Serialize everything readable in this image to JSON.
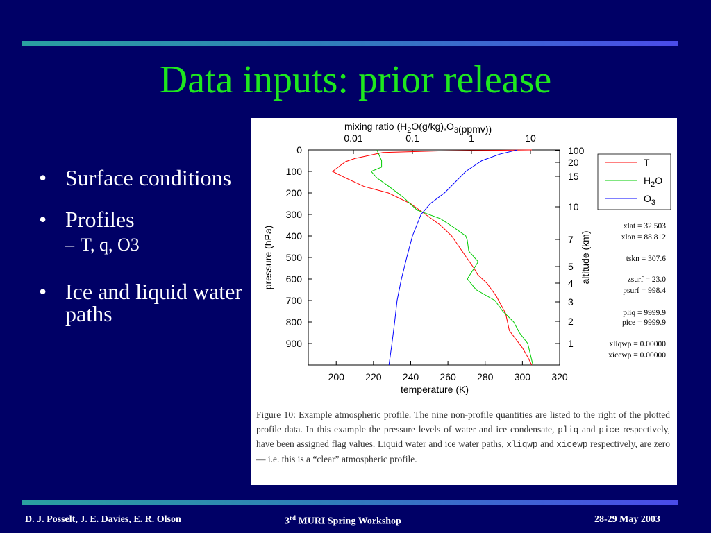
{
  "slide": {
    "title": "Data inputs: prior release",
    "bullets": [
      {
        "text": "Surface conditions"
      },
      {
        "text": "Profiles"
      },
      {
        "text": "Ice and liquid water paths"
      }
    ],
    "sub_bullet": "T, q, O3",
    "bullet_glyph": "•",
    "sub_glyph": "–"
  },
  "footer": {
    "left": "D. J. Posselt, J. E. Davies, E. R. Olson",
    "center_prefix": "3",
    "center_sup": "rd",
    "center_suffix": " MURI Spring Workshop",
    "right": "28-29 May 2003"
  },
  "figure": {
    "top_axis_label": "mixing ratio  (H2O(g/kg),O3(ppmv))",
    "top_axis_ticks": [
      "0.01",
      "0.1",
      "1",
      "10"
    ],
    "left_axis_label": "pressure  (hPa)",
    "left_axis_ticks": [
      "0",
      "100",
      "200",
      "300",
      "400",
      "500",
      "600",
      "700",
      "800",
      "900"
    ],
    "bottom_axis_label": "temperature  (K)",
    "bottom_axis_ticks": [
      "200",
      "220",
      "240",
      "260",
      "280",
      "300",
      "320"
    ],
    "right_axis_label": "altitude  (km)",
    "right_axis_ticks": [
      "100",
      "20",
      "15",
      "10",
      "7",
      "5",
      "4",
      "3",
      "2",
      "1"
    ],
    "legend": [
      {
        "label": "T",
        "color": "#ff0000"
      },
      {
        "label": "H2O",
        "color": "#00cc00"
      },
      {
        "label": "O3",
        "color": "#0000ff"
      }
    ],
    "annotations": [
      "xlat =    32.503",
      "xlon =    88.812",
      "tskn =  307.6",
      "zsurf =    23.0",
      "psurf =  998.4",
      "pliq = 9999.9",
      "pice = 9999.9",
      "xliqwp =    0.00000",
      "xicewp =    0.00000"
    ],
    "caption": "Figure 10: Example atmospheric profile. The nine non-profile quantities are listed to the right of the plotted profile data. In this example the pressure levels of water and ice condensate, pliq and pice respectively, have been assigned flag values. Liquid water and ice water paths, xliqwp and xicewp respectively, are zero — i.e. this is a “clear” atmospheric profile."
  },
  "chart_data": {
    "type": "line",
    "xlabel": "temperature  (K)",
    "ylabel": "pressure  (hPa)",
    "x2label": "mixing ratio  (H2O(g/kg),O3(ppmv))",
    "y2label": "altitude  (km)",
    "xlim": [
      185,
      320
    ],
    "ylim": [
      1000,
      0
    ],
    "series": [
      {
        "name": "T",
        "x_axis": "temperature",
        "color": "#ff0000",
        "points": [
          [
            305,
            0
          ],
          [
            255,
            5
          ],
          [
            225,
            12
          ],
          [
            210,
            40
          ],
          [
            205,
            55
          ],
          [
            198,
            100
          ],
          [
            205,
            130
          ],
          [
            215,
            170
          ],
          [
            228,
            200
          ],
          [
            240,
            250
          ],
          [
            248,
            300
          ],
          [
            256,
            350
          ],
          [
            262,
            400
          ],
          [
            266,
            450
          ],
          [
            270,
            500
          ],
          [
            274,
            550
          ],
          [
            276,
            580
          ],
          [
            281,
            620
          ],
          [
            286,
            680
          ],
          [
            291,
            760
          ],
          [
            293,
            840
          ],
          [
            300,
            920
          ],
          [
            303,
            965
          ],
          [
            305,
            1000
          ]
        ]
      },
      {
        "name": "H2O",
        "x_axis": "mixing_ratio",
        "color": "#00cc00",
        "points": [
          [
            0.025,
            0
          ],
          [
            0.03,
            50
          ],
          [
            0.03,
            80
          ],
          [
            0.02,
            100
          ],
          [
            0.025,
            130
          ],
          [
            0.04,
            170
          ],
          [
            0.07,
            220
          ],
          [
            0.12,
            280
          ],
          [
            0.3,
            320
          ],
          [
            0.5,
            360
          ],
          [
            0.8,
            400
          ],
          [
            0.85,
            420
          ],
          [
            0.9,
            470
          ],
          [
            1.3,
            520
          ],
          [
            0.85,
            600
          ],
          [
            1.2,
            650
          ],
          [
            2.5,
            700
          ],
          [
            3.4,
            750
          ],
          [
            5.2,
            800
          ],
          [
            6.5,
            850
          ],
          [
            9,
            900
          ],
          [
            11,
            1000
          ]
        ]
      },
      {
        "name": "O3",
        "x_axis": "mixing_ratio",
        "color": "#0000ff",
        "points": [
          [
            6,
            0
          ],
          [
            3,
            20
          ],
          [
            1.5,
            50
          ],
          [
            0.8,
            100
          ],
          [
            0.35,
            200
          ],
          [
            0.2,
            250
          ],
          [
            0.14,
            300
          ],
          [
            0.1,
            400
          ],
          [
            0.08,
            500
          ],
          [
            0.065,
            600
          ],
          [
            0.055,
            700
          ],
          [
            0.05,
            800
          ],
          [
            0.045,
            900
          ],
          [
            0.04,
            1000
          ]
        ]
      }
    ]
  }
}
